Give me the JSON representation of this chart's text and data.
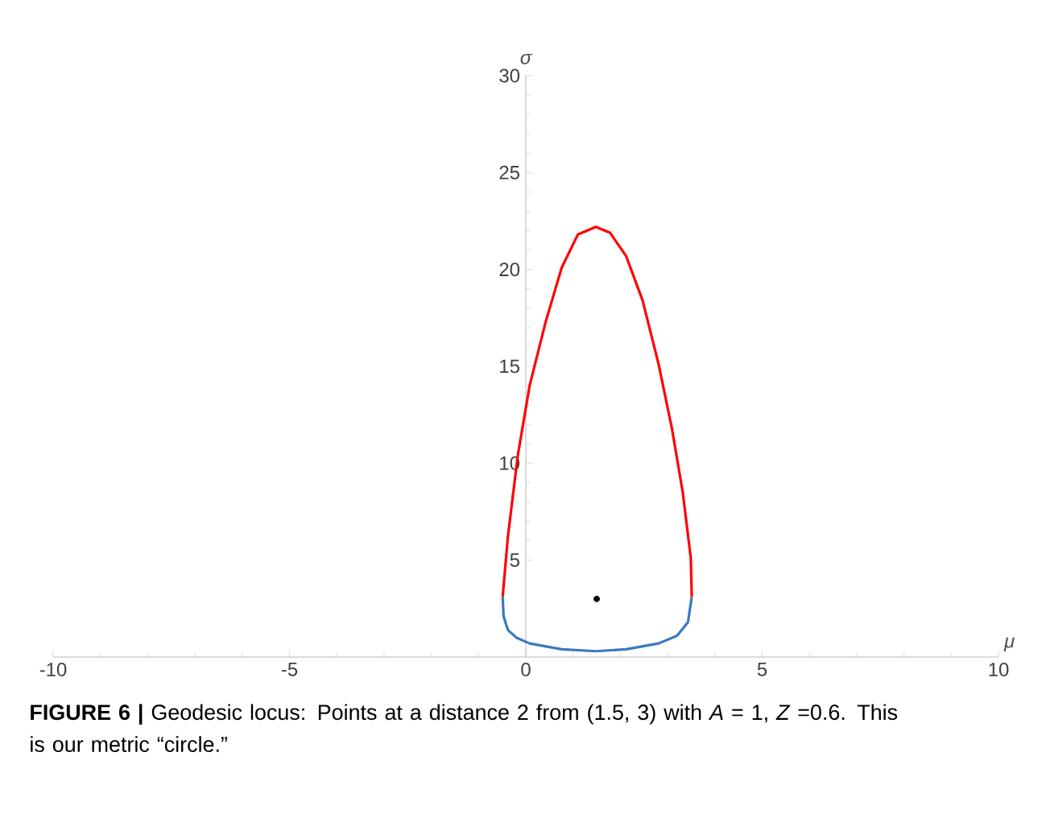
{
  "chart_data": {
    "type": "line",
    "xlabel": "μ",
    "ylabel": "σ",
    "xlim": [
      -10,
      10
    ],
    "ylim": [
      0,
      30
    ],
    "xticks": [
      -10,
      -5,
      0,
      5,
      10
    ],
    "yticks": [
      5,
      10,
      15,
      20,
      25,
      30
    ],
    "grid": false,
    "series": [
      {
        "color": "#ff0000",
        "x": [
          -0.49,
          -0.38,
          -0.17,
          0.08,
          0.42,
          0.76,
          1.1,
          1.48,
          1.78,
          2.12,
          2.47,
          2.81,
          3.09,
          3.32,
          3.49,
          3.51
        ],
        "values": [
          3.1,
          6.2,
          10.4,
          14.0,
          17.3,
          20.1,
          21.8,
          22.2,
          21.9,
          20.7,
          18.4,
          15.1,
          11.8,
          8.5,
          5.1,
          3.1
        ]
      },
      {
        "color": "#3a7abd",
        "x": [
          -0.49,
          -0.47,
          -0.38,
          -0.2,
          0.08,
          0.76,
          1.48,
          2.12,
          2.81,
          3.2,
          3.43,
          3.51
        ],
        "values": [
          3.1,
          2.1,
          1.4,
          1.0,
          0.7,
          0.4,
          0.3,
          0.4,
          0.7,
          1.1,
          1.8,
          3.1
        ]
      },
      {
        "type": "scatter",
        "color": "#000000",
        "x": [
          1.5
        ],
        "values": [
          3
        ]
      }
    ],
    "annotations": [
      "**FIGURE 6 |** Geodesic locus: Points at a distance 2 from (1.5, 3) with *A* = 1, *Z* =0.6. This is our metric “circle.”"
    ]
  }
}
